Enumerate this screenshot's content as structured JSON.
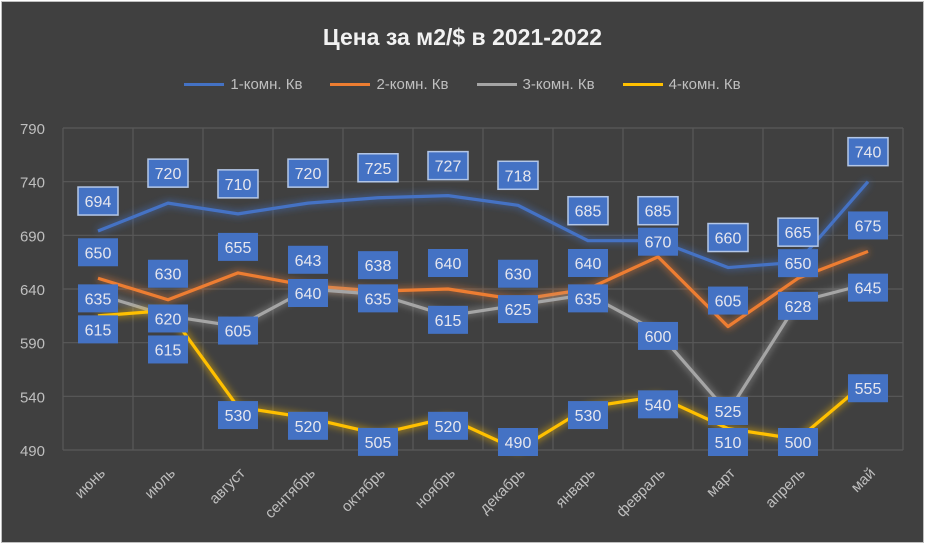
{
  "chart_data": {
    "type": "line",
    "title": "Цена за м2/$ в 2021-2022",
    "categories": [
      "июнь",
      "июль",
      "август",
      "сентябрь",
      "октябрь",
      "ноябрь",
      "декабрь",
      "январь",
      "февраль",
      "март",
      "апрель",
      "май"
    ],
    "ylim": [
      490,
      790
    ],
    "yticks": [
      490,
      540,
      590,
      640,
      690,
      740,
      790
    ],
    "grid": true,
    "legend_position": "top",
    "series": [
      {
        "name": "1-комн. Кв",
        "color": "#4472C4",
        "values": [
          694,
          720,
          710,
          720,
          725,
          727,
          718,
          685,
          685,
          660,
          665,
          740
        ]
      },
      {
        "name": "2-комн. Кв",
        "color": "#ED7D31",
        "values": [
          650,
          630,
          655,
          643,
          638,
          640,
          630,
          640,
          670,
          605,
          650,
          675
        ]
      },
      {
        "name": "3-комн. Кв",
        "color": "#A5A5A5",
        "values": [
          635,
          615,
          605,
          640,
          635,
          615,
          625,
          635,
          600,
          525,
          628,
          645
        ]
      },
      {
        "name": "4-комн. Кв",
        "color": "#FFC000",
        "values": [
          615,
          620,
          530,
          520,
          505,
          520,
          490,
          530,
          540,
          510,
          500,
          555
        ]
      }
    ],
    "label_color": "#4472C4"
  }
}
